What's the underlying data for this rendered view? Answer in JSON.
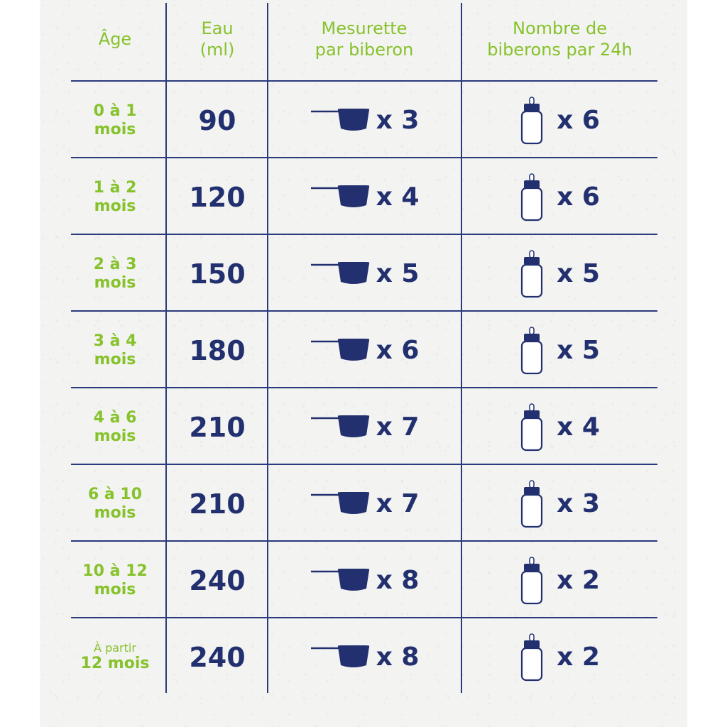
{
  "colors": {
    "green": "#86c22b",
    "navy": "#22306f",
    "paper": "#f3f3f1"
  },
  "headers": {
    "age": "Âge",
    "water": "Eau\n(ml)",
    "scoop": "Mesurette\npar biberon",
    "bottles": "Nombre de\nbiberons par 24h"
  },
  "icons": {
    "scoop": "measuring-scoop-icon",
    "bottle": "baby-bottle-icon"
  },
  "rows": [
    {
      "age": "0 à 1\nmois",
      "water": "90",
      "scoops": "x 3",
      "bottles": "x 6"
    },
    {
      "age": "1 à 2\nmois",
      "water": "120",
      "scoops": "x 4",
      "bottles": "x 6"
    },
    {
      "age": "2 à 3\nmois",
      "water": "150",
      "scoops": "x 5",
      "bottles": "x 5"
    },
    {
      "age": "3 à 4\nmois",
      "water": "180",
      "scoops": "x 6",
      "bottles": "x 5"
    },
    {
      "age": "4 à 6\nmois",
      "water": "210",
      "scoops": "x 7",
      "bottles": "x 4"
    },
    {
      "age": "6 à 10\nmois",
      "water": "210",
      "scoops": "x 7",
      "bottles": "x 3"
    },
    {
      "age": "10 à 12\nmois",
      "water": "240",
      "scoops": "x 8",
      "bottles": "x 2"
    },
    {
      "age_small": "À partir",
      "age": "12 mois",
      "water": "240",
      "scoops": "x 8",
      "bottles": "x 2"
    }
  ]
}
